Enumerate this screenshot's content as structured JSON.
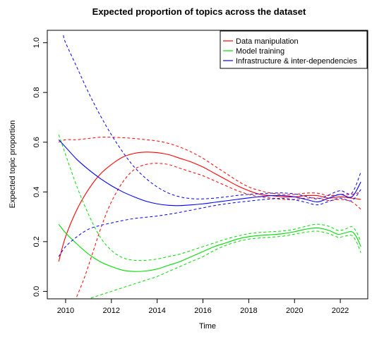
{
  "chart_data": {
    "type": "line",
    "title": "Expected proportion of topics across the dataset",
    "xlabel": "Time",
    "ylabel": "Expected topic proportion",
    "xlim": [
      2009.2,
      2023.2
    ],
    "ylim": [
      -0.03,
      1.05
    ],
    "x_ticks": [
      2010,
      2012,
      2014,
      2016,
      2018,
      2020,
      2022
    ],
    "y_ticks": [
      0.0,
      0.2,
      0.4,
      0.6,
      0.8,
      1.0
    ],
    "x_tick_labels": [
      "2010",
      "2012",
      "2014",
      "2016",
      "2018",
      "2020",
      "2022"
    ],
    "y_tick_labels": [
      "0.0",
      "0.2",
      "0.4",
      "0.6",
      "0.8",
      "1.0"
    ],
    "legend_position": "top-right",
    "series": [
      {
        "name": "Data manipulation",
        "color": "#ff0000",
        "estimate": [
          [
            2009.7,
            0.12
          ],
          [
            2010,
            0.22
          ],
          [
            2010.5,
            0.33
          ],
          [
            2011,
            0.41
          ],
          [
            2011.5,
            0.47
          ],
          [
            2012,
            0.51
          ],
          [
            2012.5,
            0.54
          ],
          [
            2013,
            0.555
          ],
          [
            2013.5,
            0.56
          ],
          [
            2014,
            0.558
          ],
          [
            2014.5,
            0.55
          ],
          [
            2015,
            0.535
          ],
          [
            2015.5,
            0.52
          ],
          [
            2016,
            0.5
          ],
          [
            2016.5,
            0.475
          ],
          [
            2017,
            0.45
          ],
          [
            2017.5,
            0.425
          ],
          [
            2018,
            0.405
          ],
          [
            2018.5,
            0.39
          ],
          [
            2019,
            0.385
          ],
          [
            2019.5,
            0.38
          ],
          [
            2020,
            0.38
          ],
          [
            2020.5,
            0.385
          ],
          [
            2021,
            0.385
          ],
          [
            2021.5,
            0.375
          ],
          [
            2022,
            0.38
          ],
          [
            2022.5,
            0.375
          ],
          [
            2022.9,
            0.37
          ]
        ],
        "upper": [
          [
            2009.7,
            0.6
          ],
          [
            2010,
            0.61
          ],
          [
            2010.5,
            0.61
          ],
          [
            2011,
            0.615
          ],
          [
            2011.5,
            0.62
          ],
          [
            2012,
            0.62
          ],
          [
            2012.5,
            0.618
          ],
          [
            2013,
            0.615
          ],
          [
            2013.5,
            0.61
          ],
          [
            2014,
            0.605
          ],
          [
            2014.5,
            0.595
          ],
          [
            2015,
            0.58
          ],
          [
            2015.5,
            0.56
          ],
          [
            2016,
            0.535
          ],
          [
            2016.5,
            0.505
          ],
          [
            2017,
            0.475
          ],
          [
            2017.5,
            0.445
          ],
          [
            2018,
            0.42
          ],
          [
            2018.5,
            0.405
          ],
          [
            2019,
            0.395
          ],
          [
            2019.5,
            0.39
          ],
          [
            2020,
            0.39
          ],
          [
            2020.5,
            0.395
          ],
          [
            2021,
            0.395
          ],
          [
            2021.5,
            0.385
          ],
          [
            2022,
            0.39
          ],
          [
            2022.5,
            0.39
          ],
          [
            2022.9,
            0.4
          ]
        ],
        "lower": [
          [
            2010.4,
            -0.04
          ],
          [
            2010.8,
            0.05
          ],
          [
            2011.2,
            0.16
          ],
          [
            2011.6,
            0.27
          ],
          [
            2012,
            0.36
          ],
          [
            2012.5,
            0.44
          ],
          [
            2013,
            0.49
          ],
          [
            2013.5,
            0.51
          ],
          [
            2014,
            0.515
          ],
          [
            2014.5,
            0.51
          ],
          [
            2015,
            0.495
          ],
          [
            2015.5,
            0.48
          ],
          [
            2016,
            0.465
          ],
          [
            2016.5,
            0.445
          ],
          [
            2017,
            0.425
          ],
          [
            2017.5,
            0.405
          ],
          [
            2018,
            0.39
          ],
          [
            2018.5,
            0.38
          ],
          [
            2019,
            0.375
          ],
          [
            2019.5,
            0.37
          ],
          [
            2020,
            0.37
          ],
          [
            2020.5,
            0.375
          ],
          [
            2021,
            0.375
          ],
          [
            2021.5,
            0.365
          ],
          [
            2022,
            0.37
          ],
          [
            2022.5,
            0.36
          ],
          [
            2022.9,
            0.33
          ]
        ]
      },
      {
        "name": "Model training",
        "color": "#00dd00",
        "estimate": [
          [
            2009.7,
            0.27
          ],
          [
            2010,
            0.235
          ],
          [
            2010.5,
            0.19
          ],
          [
            2011,
            0.15
          ],
          [
            2011.5,
            0.12
          ],
          [
            2012,
            0.1
          ],
          [
            2012.5,
            0.085
          ],
          [
            2013,
            0.08
          ],
          [
            2013.5,
            0.082
          ],
          [
            2014,
            0.09
          ],
          [
            2014.5,
            0.105
          ],
          [
            2015,
            0.12
          ],
          [
            2015.5,
            0.14
          ],
          [
            2016,
            0.16
          ],
          [
            2016.5,
            0.18
          ],
          [
            2017,
            0.195
          ],
          [
            2017.5,
            0.21
          ],
          [
            2018,
            0.22
          ],
          [
            2018.5,
            0.225
          ],
          [
            2019,
            0.228
          ],
          [
            2019.5,
            0.232
          ],
          [
            2020,
            0.24
          ],
          [
            2020.5,
            0.25
          ],
          [
            2021,
            0.255
          ],
          [
            2021.5,
            0.245
          ],
          [
            2021.9,
            0.23
          ],
          [
            2022.2,
            0.235
          ],
          [
            2022.5,
            0.24
          ],
          [
            2022.7,
            0.22
          ],
          [
            2022.9,
            0.18
          ]
        ],
        "upper": [
          [
            2009.7,
            0.63
          ],
          [
            2010,
            0.55
          ],
          [
            2010.5,
            0.42
          ],
          [
            2011,
            0.31
          ],
          [
            2011.5,
            0.22
          ],
          [
            2012,
            0.165
          ],
          [
            2012.5,
            0.135
          ],
          [
            2013,
            0.125
          ],
          [
            2013.5,
            0.125
          ],
          [
            2014,
            0.13
          ],
          [
            2014.5,
            0.14
          ],
          [
            2015,
            0.15
          ],
          [
            2015.5,
            0.165
          ],
          [
            2016,
            0.18
          ],
          [
            2016.5,
            0.195
          ],
          [
            2017,
            0.21
          ],
          [
            2017.5,
            0.222
          ],
          [
            2018,
            0.232
          ],
          [
            2018.5,
            0.237
          ],
          [
            2019,
            0.24
          ],
          [
            2019.5,
            0.243
          ],
          [
            2020,
            0.25
          ],
          [
            2020.5,
            0.262
          ],
          [
            2021,
            0.27
          ],
          [
            2021.5,
            0.262
          ],
          [
            2021.9,
            0.245
          ],
          [
            2022.2,
            0.25
          ],
          [
            2022.5,
            0.26
          ],
          [
            2022.7,
            0.24
          ],
          [
            2022.9,
            0.2
          ]
        ],
        "lower": [
          [
            2010.7,
            -0.04
          ],
          [
            2011,
            -0.03
          ],
          [
            2011.5,
            -0.015
          ],
          [
            2012,
            0.0
          ],
          [
            2012.5,
            0.015
          ],
          [
            2013,
            0.03
          ],
          [
            2013.5,
            0.045
          ],
          [
            2014,
            0.06
          ],
          [
            2014.5,
            0.08
          ],
          [
            2015,
            0.1
          ],
          [
            2015.5,
            0.12
          ],
          [
            2016,
            0.14
          ],
          [
            2016.5,
            0.165
          ],
          [
            2017,
            0.185
          ],
          [
            2017.5,
            0.2
          ],
          [
            2018,
            0.21
          ],
          [
            2018.5,
            0.215
          ],
          [
            2019,
            0.218
          ],
          [
            2019.5,
            0.222
          ],
          [
            2020,
            0.23
          ],
          [
            2020.5,
            0.238
          ],
          [
            2021,
            0.242
          ],
          [
            2021.5,
            0.232
          ],
          [
            2021.9,
            0.218
          ],
          [
            2022.2,
            0.222
          ],
          [
            2022.5,
            0.225
          ],
          [
            2022.7,
            0.2
          ],
          [
            2022.9,
            0.155
          ]
        ]
      },
      {
        "name": "Infrastructure & inter-dependencies",
        "color": "#0000ff",
        "estimate": [
          [
            2009.7,
            0.61
          ],
          [
            2010,
            0.58
          ],
          [
            2010.5,
            0.53
          ],
          [
            2011,
            0.49
          ],
          [
            2011.5,
            0.455
          ],
          [
            2012,
            0.425
          ],
          [
            2012.5,
            0.4
          ],
          [
            2013,
            0.38
          ],
          [
            2013.5,
            0.363
          ],
          [
            2014,
            0.352
          ],
          [
            2014.5,
            0.346
          ],
          [
            2015,
            0.345
          ],
          [
            2015.5,
            0.348
          ],
          [
            2016,
            0.352
          ],
          [
            2016.5,
            0.358
          ],
          [
            2017,
            0.364
          ],
          [
            2017.5,
            0.37
          ],
          [
            2018,
            0.376
          ],
          [
            2018.5,
            0.381
          ],
          [
            2019,
            0.385
          ],
          [
            2019.5,
            0.385
          ],
          [
            2020,
            0.38
          ],
          [
            2020.5,
            0.37
          ],
          [
            2021,
            0.36
          ],
          [
            2021.5,
            0.375
          ],
          [
            2022,
            0.39
          ],
          [
            2022.5,
            0.38
          ],
          [
            2022.9,
            0.44
          ]
        ],
        "upper": [
          [
            2009.9,
            1.03
          ],
          [
            2010,
            1.0
          ],
          [
            2010.5,
            0.9
          ],
          [
            2011,
            0.8
          ],
          [
            2011.5,
            0.71
          ],
          [
            2012,
            0.63
          ],
          [
            2012.5,
            0.56
          ],
          [
            2013,
            0.5
          ],
          [
            2013.5,
            0.455
          ],
          [
            2014,
            0.42
          ],
          [
            2014.5,
            0.395
          ],
          [
            2015,
            0.38
          ],
          [
            2015.5,
            0.373
          ],
          [
            2016,
            0.372
          ],
          [
            2016.5,
            0.375
          ],
          [
            2017,
            0.38
          ],
          [
            2017.5,
            0.386
          ],
          [
            2018,
            0.39
          ],
          [
            2018.5,
            0.393
          ],
          [
            2019,
            0.395
          ],
          [
            2019.5,
            0.396
          ],
          [
            2020,
            0.392
          ],
          [
            2020.5,
            0.382
          ],
          [
            2021,
            0.372
          ],
          [
            2021.5,
            0.388
          ],
          [
            2022,
            0.405
          ],
          [
            2022.5,
            0.395
          ],
          [
            2022.9,
            0.48
          ]
        ],
        "lower": [
          [
            2009.7,
            0.14
          ],
          [
            2010,
            0.18
          ],
          [
            2010.5,
            0.22
          ],
          [
            2011,
            0.25
          ],
          [
            2011.5,
            0.265
          ],
          [
            2012,
            0.275
          ],
          [
            2012.5,
            0.285
          ],
          [
            2013,
            0.293
          ],
          [
            2013.5,
            0.298
          ],
          [
            2014,
            0.303
          ],
          [
            2014.5,
            0.31
          ],
          [
            2015,
            0.318
          ],
          [
            2015.5,
            0.327
          ],
          [
            2016,
            0.336
          ],
          [
            2016.5,
            0.345
          ],
          [
            2017,
            0.352
          ],
          [
            2017.5,
            0.358
          ],
          [
            2018,
            0.363
          ],
          [
            2018.5,
            0.368
          ],
          [
            2019,
            0.372
          ],
          [
            2019.5,
            0.374
          ],
          [
            2020,
            0.368
          ],
          [
            2020.5,
            0.358
          ],
          [
            2021,
            0.348
          ],
          [
            2021.5,
            0.362
          ],
          [
            2022,
            0.375
          ],
          [
            2022.5,
            0.365
          ],
          [
            2022.9,
            0.41
          ]
        ]
      }
    ]
  }
}
